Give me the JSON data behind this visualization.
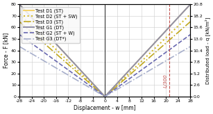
{
  "xlabel": "Displacement - w [mm]",
  "ylabel_left": "Force - F [kN]",
  "ylabel_right": "Distributed load - q [kN/m²]",
  "xlim": [
    -28,
    28
  ],
  "ylim_left": [
    0,
    80
  ],
  "ylim_right": [
    0,
    20.8
  ],
  "xticks": [
    -28,
    -24,
    -20,
    -16,
    -12,
    -8,
    -4,
    0,
    4,
    8,
    12,
    16,
    20,
    24,
    28
  ],
  "yticks_left": [
    0,
    10,
    20,
    30,
    40,
    50,
    60,
    70,
    80
  ],
  "yticks_right": [
    0.0,
    2.6,
    5.2,
    7.8,
    10.4,
    13.0,
    15.6,
    18.2,
    20.8
  ],
  "vline_x": 21,
  "vline_color": "#c0504d",
  "vline_label": "L/300",
  "line_configs": [
    {
      "label": "Test D1 (ST)",
      "color": "#f5d060",
      "style": "-",
      "lw": 1.3,
      "slope": 2.857
    },
    {
      "label": "Test D2 (ST + SW)",
      "color": "#d4bc30",
      "style": ":",
      "lw": 1.5,
      "slope": 2.55
    },
    {
      "label": "Test D3 (ST)",
      "color": "#c0a820",
      "style": "-.",
      "lw": 1.2,
      "slope": 2.32
    },
    {
      "label": "Test G1 (DT)",
      "color": "#9090a8",
      "style": "-",
      "lw": 1.4,
      "slope": 2.857
    },
    {
      "label": "Test G2 (ST + W)",
      "color": "#6868b0",
      "style": "--",
      "lw": 1.2,
      "slope": 1.92
    },
    {
      "label": "Test G3 (DT*)",
      "color": "#a8b0cc",
      "style": "-.",
      "lw": 1.2,
      "slope": 1.55
    }
  ],
  "background_color": "#ffffff",
  "grid_color": "#cccccc",
  "fontsize": 5.5,
  "legend_fontsize": 4.8,
  "tick_fontsize": 4.5
}
